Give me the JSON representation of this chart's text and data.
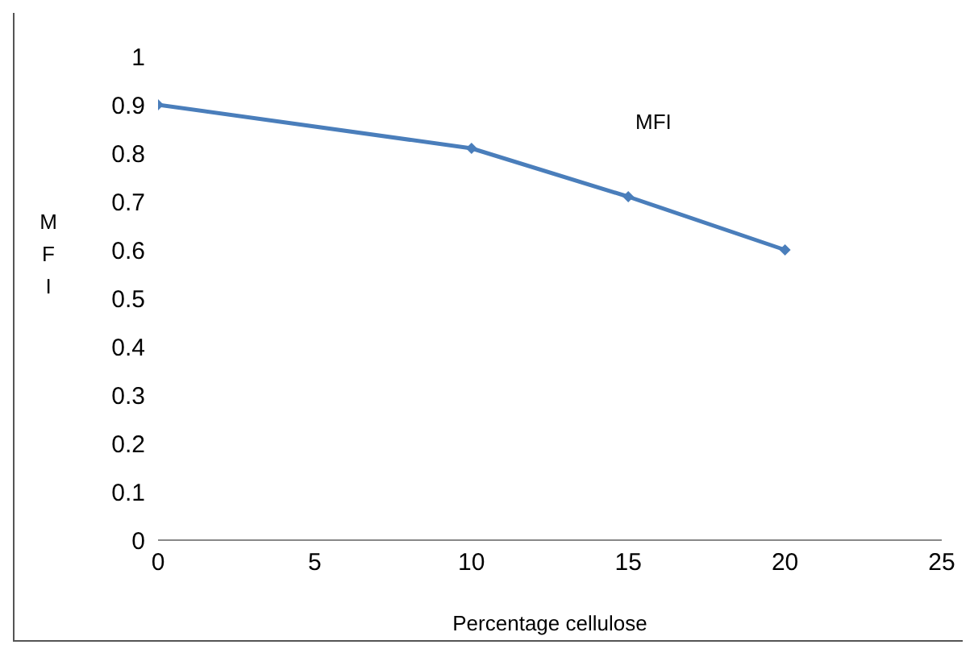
{
  "chart_data": {
    "type": "line",
    "xlabel": "Percentage cellulose",
    "ylabel": "MFI",
    "annotations": [
      "MFI"
    ],
    "x": [
      0,
      10,
      15,
      20
    ],
    "series": [
      {
        "color": "#4a7ebb",
        "values": [
          0.9,
          0.81,
          0.71,
          0.6
        ]
      }
    ],
    "xlim": [
      0,
      25
    ],
    "xticks": [
      0,
      5,
      10,
      15,
      20,
      25
    ],
    "ylim": [
      0,
      1
    ],
    "yticks": [
      0,
      0.1,
      0.2,
      0.3,
      0.4,
      0.5,
      0.6,
      0.7,
      0.8,
      0.9,
      1
    ],
    "grid": false,
    "legend": false,
    "marker": "diamond",
    "line_style": "solid"
  }
}
